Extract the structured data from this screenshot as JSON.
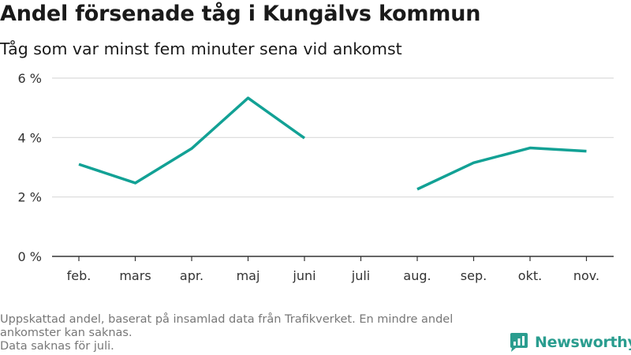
{
  "title": "Andel försenade tåg i Kungälvs kommun",
  "subtitle": "Tåg som var minst fem minuter sena vid ankomst",
  "footnote": [
    "Uppskattad andel, baserat på insamlad data från Trafikverket. En mindre andel",
    "ankomster kan saknas.",
    "Data saknas för juli."
  ],
  "brand": {
    "name": "Newsworthy",
    "color": "#2a9d8f"
  },
  "colors": {
    "line": "#12a195",
    "grid": "#d9d9d9",
    "axis": "#333333"
  },
  "chart_data": {
    "type": "line",
    "categories": [
      "feb.",
      "mars",
      "apr.",
      "maj",
      "juni",
      "juli",
      "aug.",
      "sep.",
      "okt.",
      "nov."
    ],
    "series": [
      {
        "values": [
          3.1,
          2.47,
          3.63,
          5.33,
          3.98,
          null,
          2.26,
          3.15,
          3.65,
          3.54
        ]
      }
    ],
    "yticks": [
      "0 %",
      "2 %",
      "4 %",
      "6 %"
    ],
    "ylim": [
      0,
      6
    ],
    "grid": true,
    "legend": "none"
  }
}
